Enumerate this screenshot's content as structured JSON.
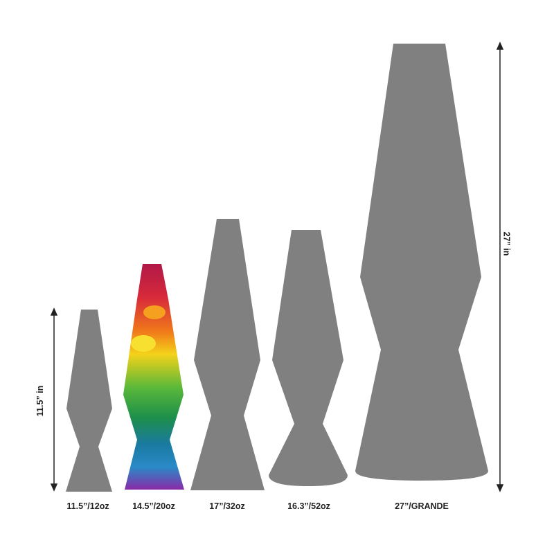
{
  "lamps": [
    {
      "label": "11.5”/12oz"
    },
    {
      "label": "14.5”/20oz"
    },
    {
      "label": "17”/32oz"
    },
    {
      "label": "16.3”/52oz"
    },
    {
      "label": "27”/GRANDE"
    }
  ],
  "dimensions": {
    "left": "11.5” in",
    "right": "27” in"
  },
  "colors": {
    "silhouette": "#808080",
    "arrow": "#222222"
  }
}
